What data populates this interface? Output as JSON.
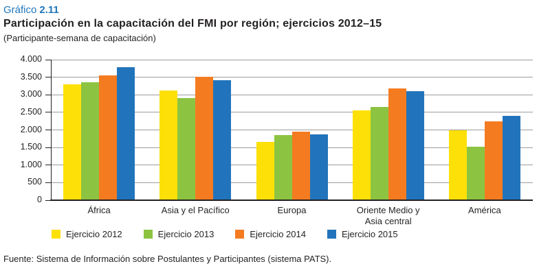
{
  "header": {
    "figure_label": "Gráfico",
    "figure_number": "2.11",
    "title": "Participación en la capacitación del FMI por región; ejercicios 2012–15",
    "subtitle": "(Participante-semana de capacitación)"
  },
  "chart_data": {
    "type": "bar",
    "categories": [
      "África",
      "Asia y el Pacífico",
      "Europa",
      "Oriente Medio y\nAsia central",
      "América"
    ],
    "series": [
      {
        "name": "Ejercicio 2012",
        "color": "#FDE008",
        "values": [
          3300,
          3130,
          1650,
          2550,
          2000
        ]
      },
      {
        "name": "Ejercicio 2013",
        "color": "#8CC442",
        "values": [
          3350,
          2900,
          1850,
          2650,
          1520
        ]
      },
      {
        "name": "Ejercicio 2014",
        "color": "#F47B20",
        "values": [
          3560,
          3510,
          1950,
          3180,
          2240
        ]
      },
      {
        "name": "Ejercicio 2015",
        "color": "#2174BB",
        "values": [
          3780,
          3420,
          1870,
          3100,
          2400
        ]
      }
    ],
    "title": "Participación en la capacitación del FMI por región; ejercicios 2012–15",
    "xlabel": "",
    "ylabel": "",
    "ylim": [
      0,
      4000
    ],
    "ytick_step": 500,
    "ytick_labels": [
      "4.000",
      "3.500",
      "3.000",
      "2.500",
      "2.000",
      "1.500",
      "1.000",
      "500",
      "0"
    ],
    "grid": true,
    "legend_position": "bottom",
    "gridline_color": "#9B9B9B",
    "axis_color": "#231F20"
  },
  "source": "Fuente: Sistema de Información sobre Postulantes y Participantes (sistema PATS)."
}
